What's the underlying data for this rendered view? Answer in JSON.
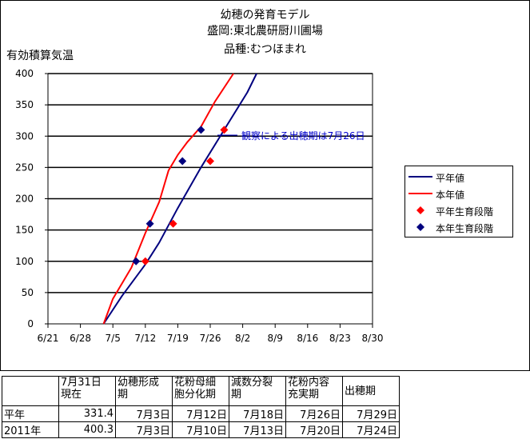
{
  "titles": [
    "幼穂の発育モデル",
    "盛岡:東北農研厨川圃場",
    "品種:むつほまれ"
  ],
  "y_axis_label": "有効積算気温",
  "annotation": "観察による出穂期は7月26日",
  "legend": [
    "平年値",
    "本年値",
    "平年生育段階",
    "本年生育段階"
  ],
  "colors": {
    "normal": "#00007f",
    "current": "#ff0000",
    "normal_stage": "#ff0000",
    "current_stage": "#00007f",
    "grid": "#000000"
  },
  "table": {
    "headers": [
      "",
      "7月31日\n現在",
      "幼穂形成\n期",
      "花粉母細\n胞分化期",
      "減数分裂\n期",
      "花粉内容\n充実期",
      "出穂期"
    ],
    "rows": [
      [
        "平年",
        "331.4",
        "7月3日",
        "7月12日",
        "7月18日",
        "7月26日",
        "7月29日"
      ],
      [
        "2011年",
        "400.3",
        "7月3日",
        "7月10日",
        "7月13日",
        "7月20日",
        "7月24日"
      ]
    ]
  },
  "chart_data": {
    "type": "line",
    "x_tick_labels": [
      "6/21",
      "6/28",
      "7/5",
      "7/12",
      "7/19",
      "7/26",
      "8/2",
      "8/9",
      "8/16",
      "8/23",
      "8/30"
    ],
    "xlim": [
      "6/21",
      "8/30"
    ],
    "ylim": [
      0,
      400
    ],
    "y_ticks": [
      0,
      50,
      100,
      150,
      200,
      250,
      300,
      350,
      400
    ],
    "grid": "horizontal",
    "legend_position": "right",
    "series": [
      {
        "name": "平年値",
        "kind": "line",
        "x": [
          "7/3",
          "7/7",
          "7/12",
          "7/15",
          "7/19",
          "7/24",
          "7/29",
          "8/3",
          "8/5"
        ],
        "y": [
          0,
          45,
          95,
          130,
          185,
          250,
          310,
          370,
          400
        ]
      },
      {
        "name": "本年値",
        "kind": "line",
        "x": [
          "7/3",
          "7/5",
          "7/9",
          "7/12",
          "7/15",
          "7/17",
          "7/19",
          "7/21",
          "7/24",
          "7/27",
          "7/31"
        ],
        "y": [
          0,
          40,
          90,
          145,
          195,
          245,
          270,
          290,
          315,
          355,
          400
        ]
      },
      {
        "name": "平年生育段階",
        "kind": "marker",
        "x": [
          "7/12",
          "7/18",
          "7/26",
          "7/29"
        ],
        "y": [
          100,
          160,
          260,
          310
        ]
      },
      {
        "name": "本年生育段階",
        "kind": "marker",
        "x": [
          "7/10",
          "7/13",
          "7/20",
          "7/24"
        ],
        "y": [
          100,
          160,
          260,
          310
        ]
      }
    ]
  }
}
